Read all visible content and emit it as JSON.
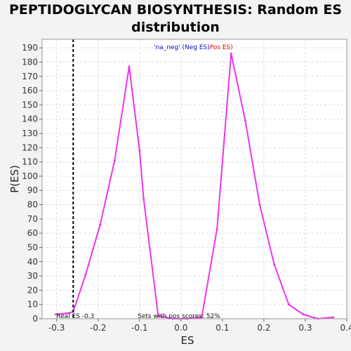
{
  "chart_data": {
    "type": "line",
    "title": "PEPTIDOGLYCAN BIOSYNTHESIS: Random ES distribution",
    "title_lines": [
      "PEPTIDOGLYCAN BIOSYNTHESIS: Random ES",
      "distribution"
    ],
    "xlabel": "ES",
    "ylabel": "P(ES)",
    "xlim": [
      -0.335,
      0.4
    ],
    "ylim": [
      0,
      196
    ],
    "xticks": [
      -0.3,
      -0.2,
      -0.1,
      0.0,
      0.1,
      0.2,
      0.3,
      0.4
    ],
    "xtick_labels": [
      "-0.3",
      "-0.2",
      "-0.1",
      "0.0",
      "0.1",
      "0.2",
      "0.3",
      "0.4"
    ],
    "yticks": [
      0,
      10,
      20,
      30,
      40,
      50,
      60,
      70,
      80,
      90,
      100,
      110,
      120,
      130,
      140,
      150,
      160,
      170,
      180,
      190
    ],
    "grid": true,
    "series": [
      {
        "color": "#ee33ee",
        "x": [
          -0.302,
          -0.27,
          -0.26,
          -0.23,
          -0.195,
          -0.16,
          -0.125,
          -0.1,
          -0.09,
          -0.055,
          -0.02,
          0.015,
          0.05,
          0.087,
          0.121,
          0.155,
          0.19,
          0.225,
          0.26,
          0.295,
          0.33,
          0.367
        ],
        "y": [
          3,
          4,
          5,
          31,
          66,
          111,
          177,
          118,
          84,
          2,
          0,
          0,
          1,
          63,
          186,
          139,
          80,
          38,
          10,
          3,
          0,
          1
        ]
      }
    ],
    "real_es": {
      "value": -0.26,
      "color": "#000000",
      "label": "Real ES -0.3"
    },
    "annotations": {
      "pos_scores": "Sets with pos scores: 52%",
      "legend_neg": "'na_neg' (Neg ES)",
      "legend_pos": "Pos ES)",
      "legend_neg_color": "#1010cc",
      "legend_pos_color": "#dd1111"
    },
    "colors": {
      "plot_bg": "#ffffff",
      "frame": "#9a9a9a",
      "grid": "#dcdcdc",
      "page_bg": "#f3f3f3"
    }
  }
}
